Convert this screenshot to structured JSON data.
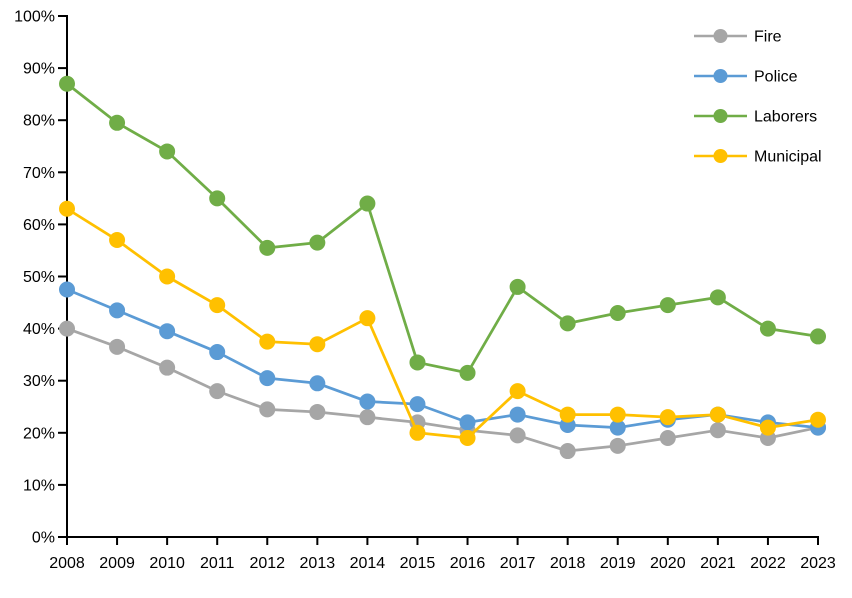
{
  "chart_data": {
    "type": "line",
    "title": "",
    "xlabel": "",
    "ylabel": "",
    "x_categories": [
      "2008",
      "2009",
      "2010",
      "2011",
      "2012",
      "2013",
      "2014",
      "2015",
      "2016",
      "2017",
      "2018",
      "2019",
      "2020",
      "2021",
      "2022",
      "2023"
    ],
    "ylim": [
      0,
      100
    ],
    "ytick_step": 10,
    "y_tick_labels": [
      "0%",
      "10%",
      "20%",
      "30%",
      "40%",
      "50%",
      "60%",
      "70%",
      "80%",
      "90%",
      "100%"
    ],
    "grid": false,
    "legend_position": "top-right",
    "axis_color": "#000000",
    "background_color": "#ffffff",
    "series": [
      {
        "name": "Fire",
        "color": "#A6A6A6",
        "values": [
          40,
          36.5,
          32.5,
          28,
          24.5,
          24,
          23,
          22,
          20.5,
          19.5,
          16.5,
          17.5,
          19,
          20.5,
          19,
          21
        ]
      },
      {
        "name": "Police",
        "color": "#5B9BD5",
        "values": [
          47.5,
          43.5,
          39.5,
          35.5,
          30.5,
          29.5,
          26,
          25.5,
          22,
          23.5,
          21.5,
          21,
          22.5,
          23.5,
          22,
          21
        ]
      },
      {
        "name": "Laborers",
        "color": "#70AD47",
        "values": [
          87,
          79.5,
          74,
          65,
          55.5,
          56.5,
          64,
          33.5,
          31.5,
          48,
          41,
          43,
          44.5,
          46,
          40,
          38.5
        ]
      },
      {
        "name": "Municipal",
        "color": "#FFC000",
        "values": [
          63,
          57,
          50,
          44.5,
          37.5,
          37,
          42,
          20,
          19,
          28,
          23.5,
          23.5,
          23,
          23.5,
          21,
          22.5
        ]
      }
    ],
    "legend_items": [
      "Fire",
      "Police",
      "Laborers",
      "Municipal"
    ]
  }
}
